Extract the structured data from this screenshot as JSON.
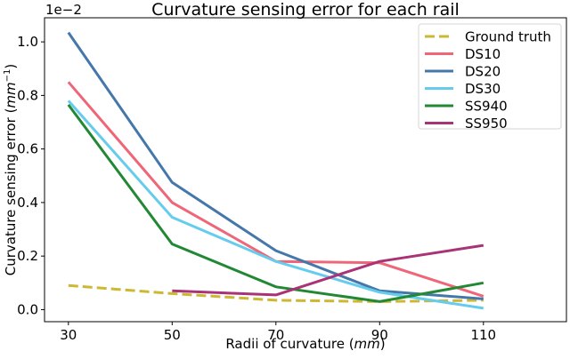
{
  "chart_data": {
    "type": "line",
    "title": "Curvature sensing error for each rail",
    "xlabel": "Radii of curvature (mm)",
    "xlabel_parts": {
      "prefix": "Radii of curvature (",
      "unit": "mm",
      "suffix": ")"
    },
    "ylabel": "Curvature sensing error (mm^-1)",
    "ylabel_parts": {
      "prefix": "Curvature sensing error (",
      "unit": "mm",
      "exp": "−1",
      "suffix": ")"
    },
    "y_offset_text": "1e−2",
    "x": [
      30,
      50,
      70,
      90,
      110
    ],
    "xticks": [
      "30",
      "50",
      "70",
      "90",
      "110"
    ],
    "yticks": [
      "0.0",
      "0.2",
      "0.4",
      "0.6",
      "0.8",
      "1.0"
    ],
    "xlim": [
      25.4,
      126
    ],
    "ylim": [
      -0.045,
      1.09
    ],
    "grid": false,
    "legend_position": "upper right",
    "series": [
      {
        "name": "Ground truth",
        "color": "#cdb833",
        "dashed": true,
        "values": [
          0.09,
          0.06,
          0.035,
          0.03,
          0.035
        ]
      },
      {
        "name": "DS10",
        "color": "#ee6677",
        "dashed": false,
        "values": [
          0.85,
          0.4,
          0.18,
          0.175,
          0.05
        ]
      },
      {
        "name": "DS20",
        "color": "#4477aa",
        "dashed": false,
        "values": [
          1.035,
          0.475,
          0.22,
          0.07,
          0.04
        ]
      },
      {
        "name": "DS30",
        "color": "#66ccee",
        "dashed": false,
        "values": [
          0.78,
          0.345,
          0.18,
          0.065,
          0.005
        ]
      },
      {
        "name": "SS940",
        "color": "#228833",
        "dashed": false,
        "values": [
          0.765,
          0.245,
          0.085,
          0.03,
          0.1
        ]
      },
      {
        "name": "SS950",
        "color": "#aa3377",
        "dashed": false,
        "values": [
          null,
          0.07,
          0.055,
          0.18,
          0.24
        ]
      }
    ]
  }
}
